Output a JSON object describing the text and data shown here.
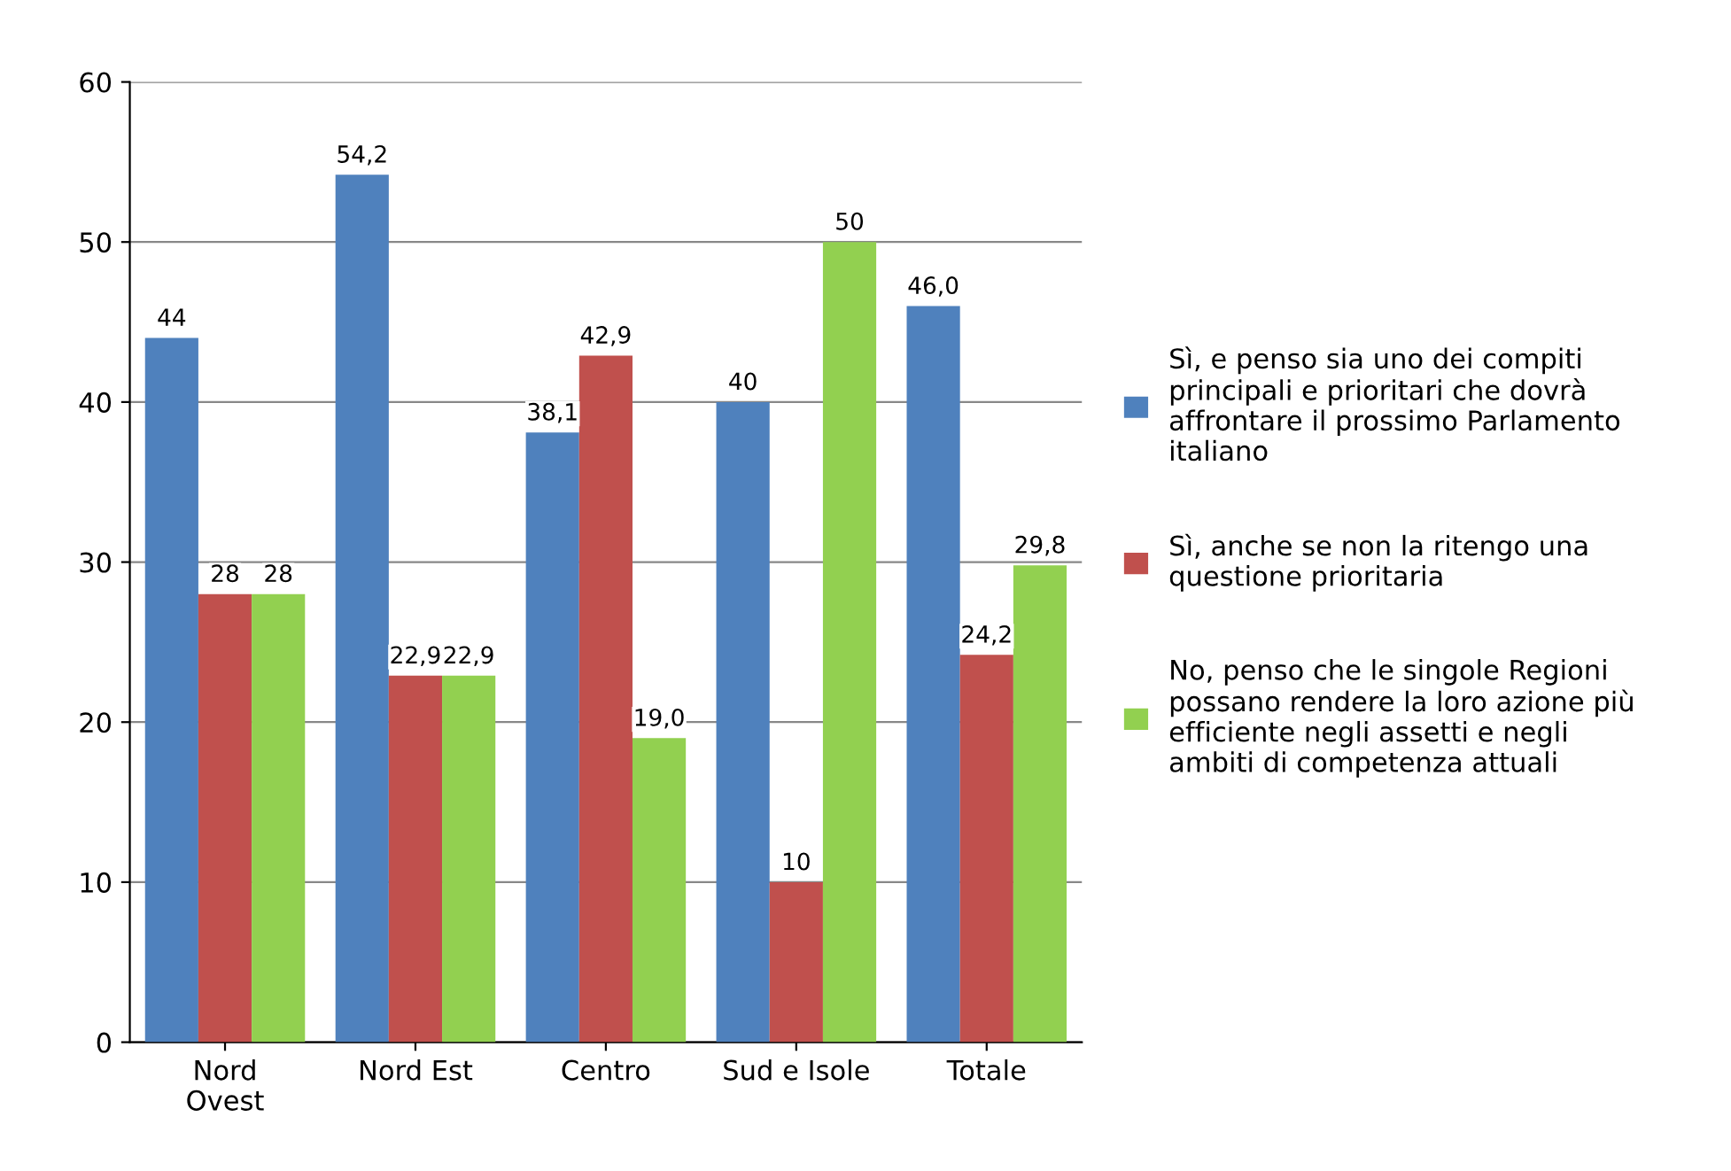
{
  "chart_data": {
    "type": "bar",
    "categories": [
      "Nord\nOvest",
      "Nord Est",
      "Centro",
      "Sud e Isole",
      "Totale"
    ],
    "series": [
      {
        "name": "Sì, e penso sia uno dei compiti principali e prioritari che dovrà affrontare il prossimo Parlamento italiano",
        "color": "#4f81bd",
        "values": [
          44,
          54.2,
          38.1,
          40,
          46.0
        ],
        "value_labels": [
          "44",
          "54,2",
          "38,1",
          "40",
          "46,0"
        ]
      },
      {
        "name": "Sì, anche se non la ritengo una questione prioritaria",
        "color": "#c0504d",
        "values": [
          28,
          22.9,
          42.9,
          10,
          24.2
        ],
        "value_labels": [
          "28",
          "22,9",
          "42,9",
          "10",
          "24,2"
        ]
      },
      {
        "name": "No, penso che le singole Regioni possano rendere la loro azione più efficiente negli assetti e negli ambiti di competenza attuali",
        "color": "#92d050",
        "values": [
          28,
          22.9,
          19.0,
          50,
          29.8
        ],
        "value_labels": [
          "28",
          "22,9",
          "19,0",
          "50",
          "29,8"
        ]
      }
    ],
    "ylim": [
      0,
      60
    ],
    "yticks": [
      0,
      10,
      20,
      30,
      40,
      50,
      60
    ],
    "grid": "y",
    "legend": "right"
  }
}
